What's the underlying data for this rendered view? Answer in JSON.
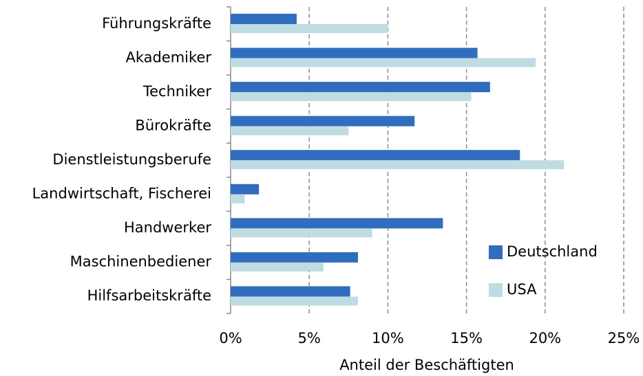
{
  "chart_data": {
    "type": "bar",
    "orientation": "horizontal",
    "x_label": "Anteil der Beschäftigten",
    "categories": [
      "Führungskräfte",
      "Akademiker",
      "Techniker",
      "Bürokräfte",
      "Dienstleistungsberufe",
      "Landwirtschaft, Fischerei",
      "Handwerker",
      "Maschinenbediener",
      "Hilfsarbeitskräfte"
    ],
    "series": [
      {
        "name": "Deutschland",
        "color": "#2e6dbf",
        "values": [
          4.2,
          15.7,
          16.5,
          11.7,
          18.4,
          1.8,
          13.5,
          8.1,
          7.6
        ]
      },
      {
        "name": "USA",
        "color": "#bfdce2",
        "values": [
          10.0,
          19.4,
          15.3,
          7.5,
          21.2,
          0.9,
          9.0,
          5.9,
          8.1
        ]
      }
    ],
    "xlim": [
      0,
      25
    ],
    "xticks": [
      {
        "value": 0,
        "label": "0%"
      },
      {
        "value": 5,
        "label": "5%"
      },
      {
        "value": 10,
        "label": "10%"
      },
      {
        "value": 15,
        "label": "15%"
      },
      {
        "value": 20,
        "label": "20%"
      },
      {
        "value": 25,
        "label": "25%"
      }
    ],
    "grid": true,
    "legend": "lower right"
  }
}
